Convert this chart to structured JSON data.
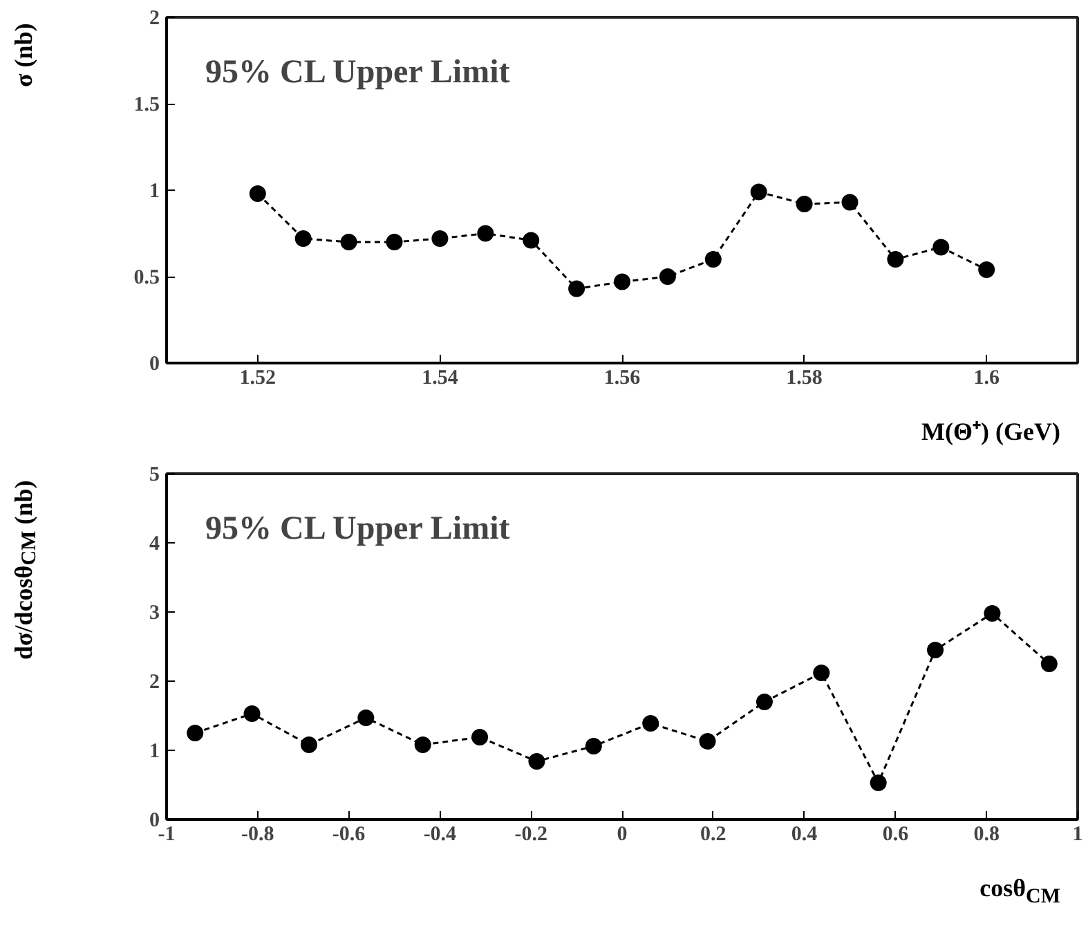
{
  "chart_data": [
    {
      "type": "line",
      "ylabel": "σ (nb)",
      "xlabel": "M(Θ⁺) (GeV)",
      "annotations": [
        "95% CL Upper Limit"
      ],
      "x": [
        1.52,
        1.525,
        1.53,
        1.535,
        1.54,
        1.545,
        1.55,
        1.555,
        1.56,
        1.565,
        1.57,
        1.575,
        1.58,
        1.585,
        1.59,
        1.595,
        1.6
      ],
      "series": [
        {
          "color": "#000000",
          "values": [
            0.98,
            0.72,
            0.7,
            0.7,
            0.72,
            0.75,
            0.71,
            0.43,
            0.47,
            0.5,
            0.6,
            0.99,
            0.92,
            0.93,
            0.6,
            0.67,
            0.54
          ]
        }
      ],
      "xlim": [
        1.51,
        1.61
      ],
      "ylim": [
        0,
        2
      ],
      "xticks": [
        1.52,
        1.54,
        1.56,
        1.58,
        1.6
      ],
      "yticks": [
        0,
        0.5,
        1,
        1.5,
        2
      ],
      "grid": false,
      "marker": "circle",
      "line_style": "dashed"
    },
    {
      "type": "line",
      "ylabel": "dσ/dcosθ$_{CM}$ (nb)",
      "xlabel": "cosθ$_{CM}$",
      "annotations": [
        "95% CL Upper Limit"
      ],
      "x": [
        -0.9375,
        -0.8125,
        -0.6875,
        -0.5625,
        -0.4375,
        -0.3125,
        -0.1875,
        -0.0625,
        0.0625,
        0.1875,
        0.3125,
        0.4375,
        0.5625,
        0.6875,
        0.8125,
        0.9375
      ],
      "series": [
        {
          "color": "#000000",
          "values": [
            1.25,
            1.53,
            1.08,
            1.47,
            1.08,
            1.19,
            0.84,
            1.06,
            1.39,
            1.13,
            1.7,
            2.12,
            0.53,
            2.45,
            2.98,
            2.25
          ]
        }
      ],
      "xlim": [
        -1,
        1
      ],
      "ylim": [
        0,
        5
      ],
      "xticks": [
        -1,
        -0.8,
        -0.6,
        -0.4,
        -0.2,
        0,
        0.2,
        0.4,
        0.6,
        0.8,
        1
      ],
      "yticks": [
        0,
        1,
        2,
        3,
        4,
        5
      ],
      "grid": false,
      "marker": "circle",
      "line_style": "dashed"
    }
  ]
}
